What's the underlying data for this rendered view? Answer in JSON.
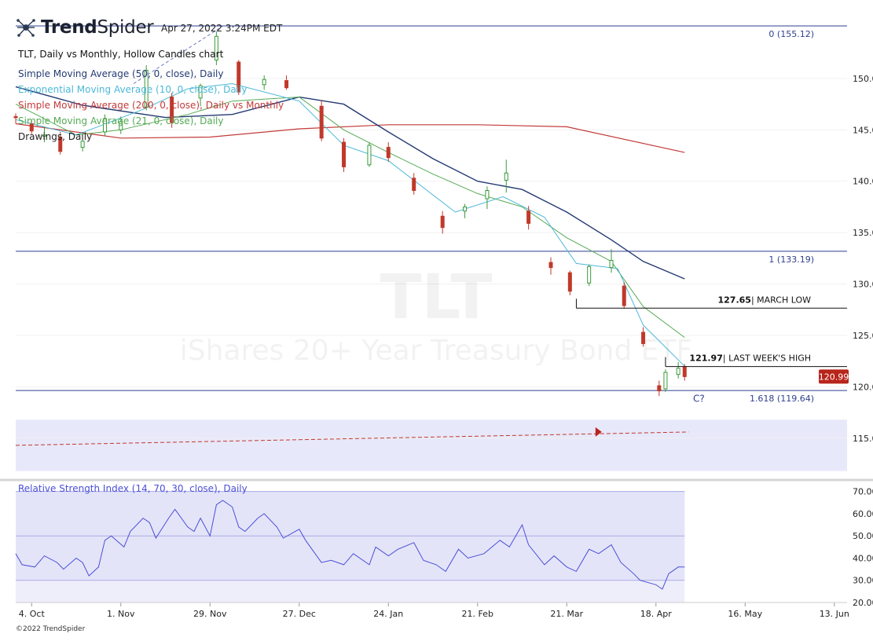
{
  "header": {
    "logo": "TrendSpider",
    "logo_parts": [
      "Trend",
      "Spider"
    ],
    "timestamp": "Apr 27, 2022 3:24PM EDT",
    "chart_title": "TLT, Daily vs Monthly, Hollow Candles chart",
    "indicators": [
      {
        "label": "Simple Moving Average (50, 0, close), Daily",
        "color": "#243a73"
      },
      {
        "label": "Exponential Moving Average (10, 0, close), Daily",
        "color": "#4cb8d8"
      },
      {
        "label": "Simple Moving Average (200, 0, close), Daily vs Monthly",
        "color": "#c43a3a"
      },
      {
        "label": "Simple Moving Average (21, 0, close), Daily",
        "color": "#55aa55"
      },
      {
        "label": "Drawings, Daily",
        "color": "#222222"
      }
    ]
  },
  "watermark": {
    "ticker": "TLT",
    "name": "iShares 20+ Year Treasury Bond ETF"
  },
  "footer": {
    "copyright": "©2022 TrendSpider"
  },
  "colors": {
    "up": "#3a9a3a",
    "down": "#c0392b",
    "sma50": "#243a73",
    "ema10": "#4cb8d8",
    "sma200": "#c43a3a",
    "sma21": "#55aa55",
    "rsi": "#4b4fd6",
    "fib": "#2f3f8f",
    "price_badge": "#b8251b"
  },
  "chart_data": {
    "type": "candlestick",
    "symbol": "TLT",
    "x_ticks": [
      "4. Oct",
      "1. Nov",
      "29. Nov",
      "27. Dec",
      "24. Jan",
      "21. Feb",
      "21. Mar",
      "18. Apr",
      "16. May",
      "13. Jun"
    ],
    "x_range": [
      "2021-09-29",
      "2022-06-17"
    ],
    "y_ticks": [
      115.0,
      120.0,
      125.0,
      130.0,
      135.0,
      140.0,
      145.0,
      150.0
    ],
    "y_tick_labels": [
      "115.00",
      "120.00",
      "125.00",
      "130.00",
      "135.00",
      "140.00",
      "145.00",
      "150.00"
    ],
    "ylim": [
      112.0,
      155.5
    ],
    "last_price": "120.99",
    "fib_levels": [
      {
        "label": "0 (155.12)",
        "value": 155.12
      },
      {
        "label": "1 (133.19)",
        "value": 133.19
      },
      {
        "label": "1.618 (119.64)",
        "value": 119.64
      }
    ],
    "annotations": [
      {
        "value_label": "127.65",
        "text": "| MARCH LOW",
        "value": 127.65,
        "from": "2022-03-24"
      },
      {
        "value_label": "121.97",
        "text": "| LAST WEEK'S HIGH",
        "value": 121.97,
        "from": "2022-04-21"
      },
      {
        "label": "C?",
        "date": "2022-04-21",
        "value": 118.9
      }
    ],
    "target_zone": {
      "low": 111.8,
      "high": 116.8
    },
    "projection_line": [
      {
        "date": "2021-09-29",
        "value": 114.3
      },
      {
        "date": "2022-04-27",
        "value": 115.6
      }
    ],
    "moving_averages": {
      "sma200": [
        [
          "2021-09-29",
          145.6
        ],
        [
          "2021-11-01",
          144.2
        ],
        [
          "2021-11-29",
          144.3
        ],
        [
          "2021-12-27",
          145.1
        ],
        [
          "2022-01-24",
          145.5
        ],
        [
          "2022-02-21",
          145.5
        ],
        [
          "2022-03-21",
          145.3
        ],
        [
          "2022-04-27",
          142.8
        ]
      ],
      "sma50": [
        [
          "2021-09-29",
          149.2
        ],
        [
          "2021-10-20",
          147.4
        ],
        [
          "2021-11-15",
          146.2
        ],
        [
          "2021-12-06",
          146.5
        ],
        [
          "2021-12-27",
          148.2
        ],
        [
          "2022-01-10",
          147.5
        ],
        [
          "2022-01-24",
          144.8
        ],
        [
          "2022-02-07",
          142.2
        ],
        [
          "2022-02-21",
          140.0
        ],
        [
          "2022-03-07",
          139.2
        ],
        [
          "2022-03-21",
          137.0
        ],
        [
          "2022-04-04",
          134.3
        ],
        [
          "2022-04-14",
          132.2
        ],
        [
          "2022-04-27",
          130.5
        ]
      ],
      "sma21": [
        [
          "2021-09-29",
          147.5
        ],
        [
          "2021-10-18",
          144.5
        ],
        [
          "2021-11-01",
          145.0
        ],
        [
          "2021-11-22",
          146.5
        ],
        [
          "2021-12-06",
          147.8
        ],
        [
          "2021-12-27",
          148.2
        ],
        [
          "2022-01-10",
          145.0
        ],
        [
          "2022-01-24",
          142.8
        ],
        [
          "2022-02-07",
          140.7
        ],
        [
          "2022-02-21",
          138.8
        ],
        [
          "2022-03-07",
          137.5
        ],
        [
          "2022-03-21",
          134.5
        ],
        [
          "2022-04-04",
          132.2
        ],
        [
          "2022-04-14",
          127.8
        ],
        [
          "2022-04-27",
          124.8
        ]
      ],
      "ema10": [
        [
          "2021-09-29",
          146.0
        ],
        [
          "2021-10-18",
          144.5
        ],
        [
          "2021-11-08",
          147.0
        ],
        [
          "2021-11-22",
          149.0
        ],
        [
          "2021-12-06",
          149.5
        ],
        [
          "2021-12-27",
          147.8
        ],
        [
          "2022-01-10",
          143.5
        ],
        [
          "2022-01-24",
          142.0
        ],
        [
          "2022-02-14",
          137.0
        ],
        [
          "2022-03-01",
          138.5
        ],
        [
          "2022-03-14",
          136.5
        ],
        [
          "2022-03-24",
          132.0
        ],
        [
          "2022-04-06",
          131.5
        ],
        [
          "2022-04-14",
          126.0
        ],
        [
          "2022-04-27",
          122.0
        ]
      ]
    },
    "candles": [
      [
        "2021-09-29",
        146.3,
        146.6,
        145.6,
        146.2
      ],
      [
        "2021-10-04",
        145.6,
        145.9,
        144.6,
        144.9
      ],
      [
        "2021-10-08",
        144.4,
        145.3,
        143.8,
        144.5
      ],
      [
        "2021-10-13",
        144.3,
        144.8,
        142.6,
        142.9
      ],
      [
        "2021-10-20",
        143.3,
        144.2,
        142.9,
        143.9
      ],
      [
        "2021-10-27",
        144.8,
        146.5,
        144.4,
        146.1
      ],
      [
        "2021-11-01",
        145.0,
        146.3,
        144.6,
        145.8
      ],
      [
        "2021-11-09",
        147.2,
        151.3,
        146.9,
        150.8
      ],
      [
        "2021-11-17",
        148.2,
        148.6,
        145.2,
        145.7
      ],
      [
        "2021-11-26",
        148.1,
        149.5,
        147.3,
        149.3
      ],
      [
        "2021-12-01",
        151.8,
        154.6,
        151.3,
        154.1
      ],
      [
        "2021-12-08",
        151.6,
        151.8,
        148.4,
        148.7
      ],
      [
        "2021-12-16",
        149.4,
        150.3,
        148.9,
        149.9
      ],
      [
        "2021-12-23",
        149.8,
        150.3,
        148.9,
        149.1
      ],
      [
        "2022-01-03",
        147.3,
        147.9,
        143.9,
        144.2
      ],
      [
        "2022-01-10",
        143.8,
        144.2,
        140.9,
        141.4
      ],
      [
        "2022-01-18",
        141.6,
        143.8,
        141.4,
        143.5
      ],
      [
        "2022-01-24",
        143.3,
        143.8,
        141.9,
        142.3
      ],
      [
        "2022-02-01",
        140.3,
        140.8,
        138.7,
        139.1
      ],
      [
        "2022-02-10",
        136.6,
        137.1,
        134.9,
        135.5
      ],
      [
        "2022-02-17",
        137.1,
        137.8,
        136.4,
        137.5
      ],
      [
        "2022-02-24",
        138.3,
        139.5,
        137.3,
        139.1
      ],
      [
        "2022-03-02",
        140.1,
        142.1,
        138.9,
        140.8
      ],
      [
        "2022-03-09",
        137.1,
        137.6,
        135.3,
        135.9
      ],
      [
        "2022-03-16",
        132.1,
        132.6,
        130.9,
        131.6
      ],
      [
        "2022-03-22",
        131.1,
        131.3,
        128.9,
        129.3
      ],
      [
        "2022-03-28",
        130.1,
        131.9,
        129.8,
        131.7
      ],
      [
        "2022-04-04",
        131.6,
        133.4,
        131.1,
        132.3
      ],
      [
        "2022-04-08",
        129.8,
        130.2,
        127.6,
        127.9
      ],
      [
        "2022-04-14",
        125.3,
        125.8,
        123.9,
        124.2
      ],
      [
        "2022-04-19",
        120.1,
        120.6,
        119.1,
        119.6
      ],
      [
        "2022-04-21",
        119.8,
        121.7,
        119.5,
        121.4
      ],
      [
        "2022-04-25",
        121.2,
        122.4,
        120.8,
        121.8
      ],
      [
        "2022-04-27",
        121.9,
        122.2,
        120.6,
        120.99
      ]
    ],
    "rsi": {
      "label": "Relative Strength Index (14, 70, 30, close), Daily",
      "y_ticks": [
        20.0,
        30.0,
        40.0,
        50.0,
        60.0,
        70.0
      ],
      "y_tick_labels": [
        "20.00",
        "30.00",
        "40.00",
        "50.00",
        "60.00",
        "70.00"
      ],
      "ylim": [
        20,
        72
      ],
      "band": [
        30,
        70
      ],
      "points": [
        [
          "2021-09-29",
          42
        ],
        [
          "2021-10-01",
          37
        ],
        [
          "2021-10-05",
          36
        ],
        [
          "2021-10-08",
          41
        ],
        [
          "2021-10-12",
          38
        ],
        [
          "2021-10-14",
          35
        ],
        [
          "2021-10-18",
          40
        ],
        [
          "2021-10-20",
          38
        ],
        [
          "2021-10-22",
          32
        ],
        [
          "2021-10-25",
          36
        ],
        [
          "2021-10-27",
          48
        ],
        [
          "2021-10-29",
          50
        ],
        [
          "2021-11-02",
          45
        ],
        [
          "2021-11-04",
          52
        ],
        [
          "2021-11-08",
          58
        ],
        [
          "2021-11-10",
          56
        ],
        [
          "2021-11-12",
          49
        ],
        [
          "2021-11-16",
          58
        ],
        [
          "2021-11-18",
          62
        ],
        [
          "2021-11-22",
          54
        ],
        [
          "2021-11-24",
          52
        ],
        [
          "2021-11-26",
          58
        ],
        [
          "2021-11-29",
          50
        ],
        [
          "2021-12-01",
          64
        ],
        [
          "2021-12-03",
          66
        ],
        [
          "2021-12-06",
          63
        ],
        [
          "2021-12-08",
          54
        ],
        [
          "2021-12-10",
          52
        ],
        [
          "2021-12-14",
          58
        ],
        [
          "2021-12-16",
          60
        ],
        [
          "2021-12-20",
          54
        ],
        [
          "2021-12-22",
          49
        ],
        [
          "2021-12-27",
          53
        ],
        [
          "2021-12-29",
          48
        ],
        [
          "2022-01-03",
          38
        ],
        [
          "2022-01-06",
          39
        ],
        [
          "2022-01-10",
          37
        ],
        [
          "2022-01-13",
          42
        ],
        [
          "2022-01-18",
          37
        ],
        [
          "2022-01-20",
          45
        ],
        [
          "2022-01-24",
          41
        ],
        [
          "2022-01-27",
          44
        ],
        [
          "2022-02-01",
          47
        ],
        [
          "2022-02-04",
          39
        ],
        [
          "2022-02-08",
          37
        ],
        [
          "2022-02-11",
          34
        ],
        [
          "2022-02-15",
          44
        ],
        [
          "2022-02-18",
          40
        ],
        [
          "2022-02-23",
          42
        ],
        [
          "2022-02-28",
          48
        ],
        [
          "2022-03-03",
          45
        ],
        [
          "2022-03-07",
          55
        ],
        [
          "2022-03-09",
          46
        ],
        [
          "2022-03-14",
          37
        ],
        [
          "2022-03-17",
          41
        ],
        [
          "2022-03-21",
          36
        ],
        [
          "2022-03-24",
          34
        ],
        [
          "2022-03-28",
          44
        ],
        [
          "2022-03-31",
          42
        ],
        [
          "2022-04-04",
          46
        ],
        [
          "2022-04-07",
          38
        ],
        [
          "2022-04-11",
          33
        ],
        [
          "2022-04-13",
          30
        ],
        [
          "2022-04-18",
          28
        ],
        [
          "2022-04-20",
          26
        ],
        [
          "2022-04-22",
          33
        ],
        [
          "2022-04-25",
          36
        ],
        [
          "2022-04-27",
          36
        ]
      ]
    }
  }
}
